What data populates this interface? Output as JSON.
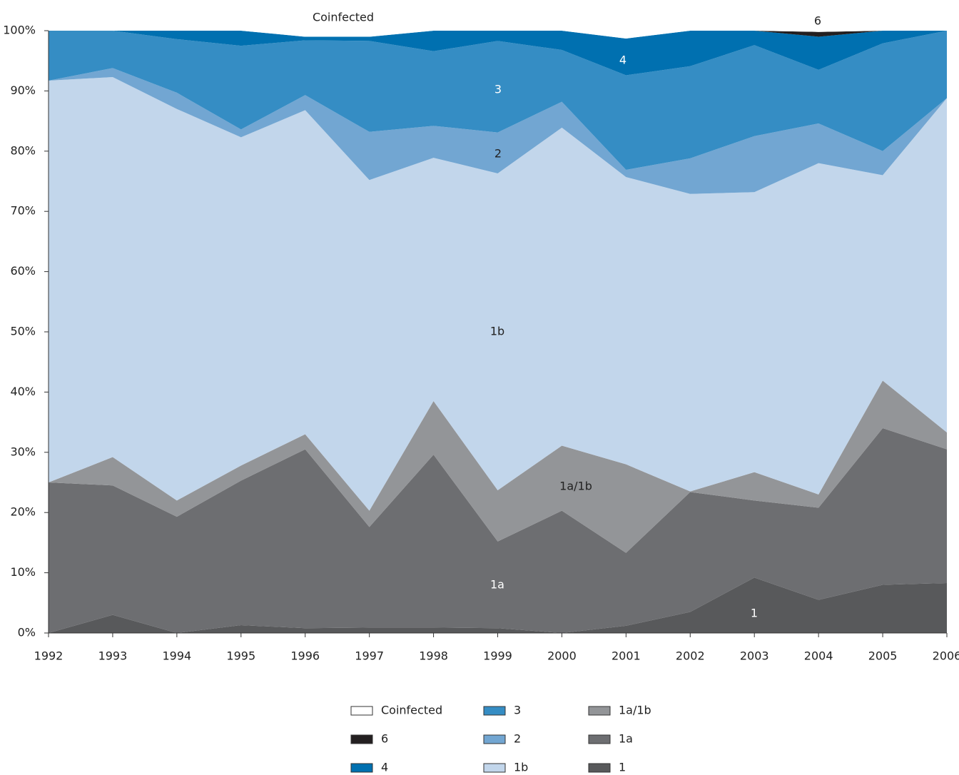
{
  "chart_data": {
    "type": "stacked_area",
    "x": [
      1992,
      1993,
      1994,
      1995,
      1996,
      1997,
      1998,
      1999,
      2000,
      2001,
      2002,
      2003,
      2004,
      2005,
      2006
    ],
    "xlim": [
      1992,
      2006
    ],
    "xticks": [
      1992,
      1993,
      1994,
      1995,
      1996,
      1997,
      1998,
      1999,
      2000,
      2001,
      2002,
      2003,
      2004,
      2005,
      2006
    ],
    "ylim": [
      0,
      100
    ],
    "yticks": [
      {
        "value": 0,
        "label": "0%"
      },
      {
        "value": 10,
        "label": "10%"
      },
      {
        "value": 20,
        "label": "20%"
      },
      {
        "value": 30,
        "label": "30%"
      },
      {
        "value": 40,
        "label": "40%"
      },
      {
        "value": 50,
        "label": "50%"
      },
      {
        "value": 60,
        "label": "60%"
      },
      {
        "value": 70,
        "label": "70%"
      },
      {
        "value": 80,
        "label": "80%"
      },
      {
        "value": 90,
        "label": "90%"
      },
      {
        "value": 100,
        "label": "100%"
      }
    ],
    "series": [
      {
        "name": "1",
        "color": "#58595b",
        "values": [
          0,
          3,
          0,
          1.3,
          0.8,
          0.9,
          0.9,
          0.8,
          0,
          1.2,
          3.5,
          9.2,
          5.5,
          8,
          8.3
        ]
      },
      {
        "name": "1a",
        "color": "#6d6e71",
        "values": [
          25,
          21.5,
          19.3,
          24,
          29.7,
          16.7,
          28.7,
          14.4,
          20.3,
          12.1,
          19.9,
          12.8,
          15.3,
          26,
          22.2
        ]
      },
      {
        "name": "1a/1b",
        "color": "#939598",
        "values": [
          0,
          4.7,
          2.7,
          2.5,
          2.5,
          2.7,
          8.9,
          8.5,
          10.8,
          14.7,
          0.1,
          4.7,
          2.2,
          7.9,
          2.8
        ]
      },
      {
        "name": "1b",
        "color": "#c2d6eb",
        "values": [
          66.7,
          63.1,
          65,
          54.5,
          53.8,
          54.9,
          40.4,
          52.6,
          52.8,
          47.7,
          49.4,
          46.5,
          55,
          34.1,
          55.5
        ]
      },
      {
        "name": "2",
        "color": "#72a6d2",
        "values": [
          0,
          1.5,
          2.7,
          1.3,
          2.5,
          8,
          5.3,
          6.8,
          4.3,
          1.2,
          5.9,
          9.3,
          6.6,
          4,
          0
        ]
      },
      {
        "name": "3",
        "color": "#358dc4",
        "values": [
          8.3,
          6.2,
          8.9,
          13.9,
          9.1,
          15.1,
          12.4,
          15.2,
          8.6,
          15.7,
          15.3,
          15.1,
          8.9,
          17.9,
          11.2
        ]
      },
      {
        "name": "4",
        "color": "#0070b0",
        "values": [
          0,
          0,
          1.4,
          2.5,
          0.6,
          0.7,
          3.4,
          1.7,
          3.2,
          6.1,
          5.9,
          2.4,
          5.5,
          2.1,
          0
        ]
      },
      {
        "name": "6",
        "color": "#231f20",
        "values": [
          0,
          0,
          0,
          0,
          0,
          0,
          0,
          0,
          0,
          0,
          0,
          0,
          0.8,
          0,
          0
        ]
      },
      {
        "name": "Coinfected",
        "color": "#ffffff",
        "values": [
          0,
          0,
          0,
          0,
          0.9,
          1,
          0,
          0,
          0,
          1.3,
          0,
          0,
          0.2,
          0,
          0
        ]
      }
    ]
  }
}
